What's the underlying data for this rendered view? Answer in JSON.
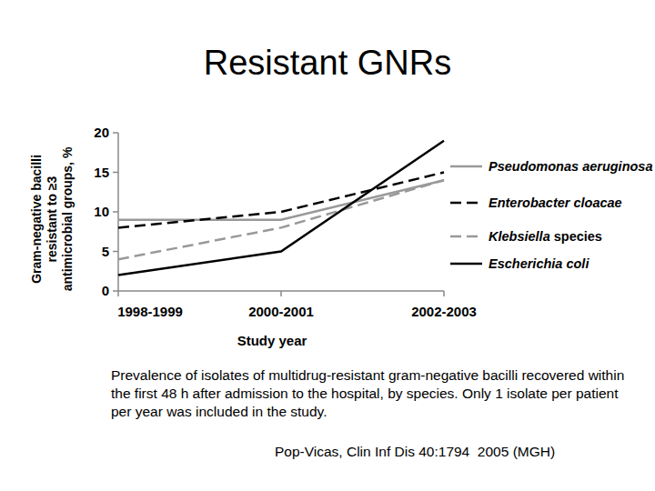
{
  "chart_data": {
    "type": "line",
    "title": "Resistant GNRs",
    "x_label": "Study year",
    "y_label": [
      "Gram-negative bacilli",
      "resistant to ≥3",
      "antimicrobial groups, %"
    ],
    "categories": [
      "1998-1999",
      "2000-2001",
      "2002-2003"
    ],
    "series": [
      {
        "name": "Pseudomonas aeruginosa",
        "color": "#999999",
        "line_style": "solid",
        "values": [
          9,
          9,
          14
        ]
      },
      {
        "name": "Enterobacter cloacae",
        "color": "#000000",
        "line_style": "dashed",
        "values": [
          8,
          10,
          15
        ]
      },
      {
        "name": "Klebsiella species",
        "color": "#999999",
        "line_style": "dashed",
        "values": [
          4,
          8,
          14
        ]
      },
      {
        "name": "Escherichia coli",
        "color": "#000000",
        "line_style": "solid",
        "values": [
          2,
          5,
          19
        ]
      }
    ],
    "ylim": [
      0,
      20
    ],
    "yticks": [
      0,
      5,
      10,
      15,
      20
    ],
    "grid": false,
    "legend": "right",
    "annotations": [
      "Prevalence of isolates of multidrug-resistant gram-negative bacilli recovered within the first 48 h after admission to the hospital, by species. Only 1 isolate per patient per year was included in the study.",
      "Pop-Vicas, Clin Inf Dis 40:1794  2005 (MGH)"
    ]
  }
}
